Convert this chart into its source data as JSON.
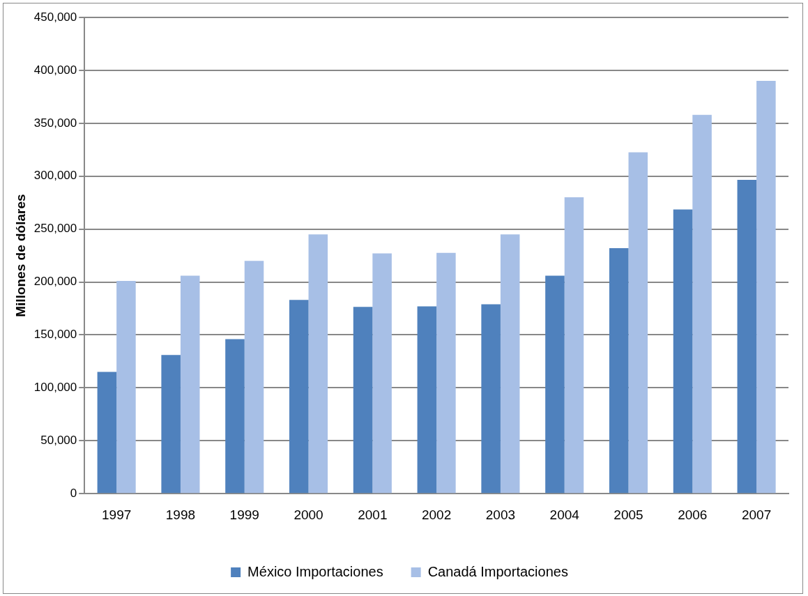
{
  "chart_data": {
    "type": "bar",
    "ylabel": "Millones de dólares",
    "categories": [
      "1997",
      "1998",
      "1999",
      "2000",
      "2001",
      "2002",
      "2003",
      "2004",
      "2005",
      "2006",
      "2007"
    ],
    "series": [
      {
        "name": "México Importaciones",
        "color": "#4f81bd",
        "values": [
          115000,
          131000,
          146000,
          183000,
          176500,
          177000,
          179000,
          206000,
          232000,
          268500,
          296500
        ]
      },
      {
        "name": "Canadá Importaciones",
        "color": "#a7bfe6",
        "values": [
          201000,
          206000,
          220000,
          245000,
          227000,
          227500,
          245000,
          280000,
          322500,
          358000,
          390000
        ]
      }
    ],
    "ylim": [
      0,
      450000
    ],
    "yticks": [
      {
        "value": 0,
        "label": "0"
      },
      {
        "value": 50000,
        "label": "50,000"
      },
      {
        "value": 100000,
        "label": "100,000"
      },
      {
        "value": 150000,
        "label": "150,000"
      },
      {
        "value": 200000,
        "label": "200,000"
      },
      {
        "value": 250000,
        "label": "250,000"
      },
      {
        "value": 300000,
        "label": "300,000"
      },
      {
        "value": 350000,
        "label": "350,000"
      },
      {
        "value": 400000,
        "label": "400,000"
      },
      {
        "value": 450000,
        "label": "450,000"
      }
    ],
    "grid": "y",
    "legend": "bottom"
  }
}
